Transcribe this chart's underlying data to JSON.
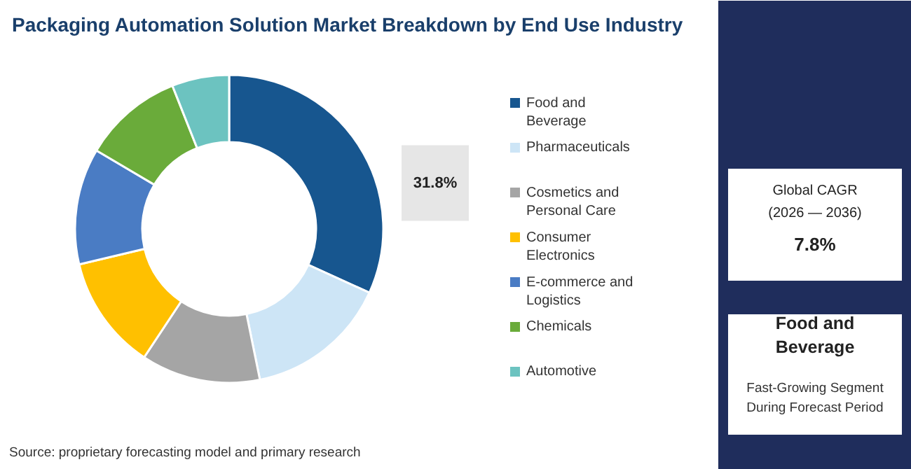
{
  "chart_data": {
    "type": "donut",
    "title": "Packaging Automation Solution Market Breakdown by End Use Industry",
    "categories": [
      "Food and Beverage",
      "Pharmaceuticals",
      "Cosmetics and Personal Care",
      "Consumer Electronics",
      "E-commerce and Logistics",
      "Chemicals",
      "Automotive"
    ],
    "values": [
      31.8,
      15,
      12.5,
      12,
      12.2,
      10.5,
      6
    ],
    "colors": [
      "#17568f",
      "#cde5f6",
      "#a5a5a5",
      "#ffc000",
      "#4a7cc4",
      "#6aab3a",
      "#6cc3c0"
    ],
    "value_labels": [
      "31.8%",
      null,
      null,
      null,
      null,
      null,
      null
    ],
    "legend": "right",
    "annotations": [
      "Source: proprietary forecasting model and primary research",
      "Global CAGR",
      "(2026 — 2036)",
      "7.8%",
      "Food and Beverage",
      "Fast-Growing Segment",
      "During Forecast Period"
    ]
  }
}
